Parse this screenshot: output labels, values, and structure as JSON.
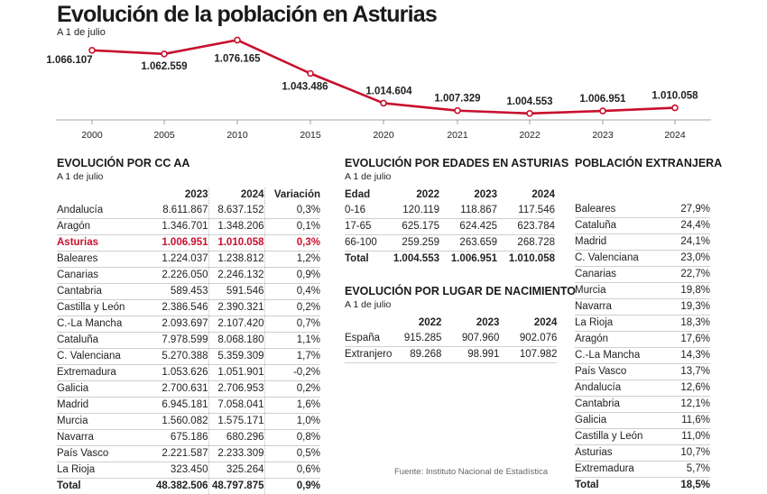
{
  "header": {
    "title": "Evolución de la población en Asturias",
    "subtitle": "A 1 de julio"
  },
  "chart_data": {
    "type": "line",
    "x": [
      "2000",
      "2005",
      "2010",
      "2015",
      "2020",
      "2021",
      "2022",
      "2023",
      "2024"
    ],
    "values": [
      1066107,
      1062559,
      1076165,
      1043486,
      1014604,
      1007329,
      1004553,
      1006951,
      1010058
    ],
    "labels": [
      "1.066.107",
      "1.062.559",
      "1.076.165",
      "1.043.486",
      "1.014.604",
      "1.007.329",
      "1.004.553",
      "1.006.951",
      "1.010.058"
    ],
    "color": "#c8102e",
    "title": "Evolución de la población en Asturias",
    "subtitle": "A 1 de julio"
  },
  "ccaa": {
    "title": "EVOLUCIÓN POR CC AA",
    "subtitle": "A 1 de julio",
    "headers": [
      "",
      "2023",
      "2024",
      "Variación"
    ],
    "rows": [
      {
        "name": "Andalucía",
        "y2023": "8.611.867",
        "y2024": "8.637.152",
        "var": "0,3%"
      },
      {
        "name": "Aragón",
        "y2023": "1.346.701",
        "y2024": "1.348.206",
        "var": "0,1%"
      },
      {
        "name": "Asturias",
        "y2023": "1.006.951",
        "y2024": "1.010.058",
        "var": "0,3%",
        "highlight": true
      },
      {
        "name": "Baleares",
        "y2023": "1.224.037",
        "y2024": "1.238.812",
        "var": "1,2%"
      },
      {
        "name": "Canarias",
        "y2023": "2.226.050",
        "y2024": "2.246.132",
        "var": "0,9%"
      },
      {
        "name": "Cantabria",
        "y2023": "589.453",
        "y2024": "591.546",
        "var": "0,4%"
      },
      {
        "name": "Castilla y León",
        "y2023": "2.386.546",
        "y2024": "2.390.321",
        "var": "0,2%"
      },
      {
        "name": "C.-La Mancha",
        "y2023": "2.093.697",
        "y2024": "2.107.420",
        "var": "0,7%"
      },
      {
        "name": "Cataluña",
        "y2023": "7.978.599",
        "y2024": "8.068.180",
        "var": "1,1%"
      },
      {
        "name": "C. Valenciana",
        "y2023": "5.270.388",
        "y2024": "5.359.309",
        "var": "1,7%"
      },
      {
        "name": "Extremadura",
        "y2023": "1.053.626",
        "y2024": "1.051.901",
        "var": "-0,2%"
      },
      {
        "name": "Galicia",
        "y2023": "2.700.631",
        "y2024": "2.706.953",
        "var": "0,2%"
      },
      {
        "name": "Madrid",
        "y2023": "6.945.181",
        "y2024": "7.058.041",
        "var": "1,6%"
      },
      {
        "name": "Murcia",
        "y2023": "1.560.082",
        "y2024": "1.575.171",
        "var": "1,0%"
      },
      {
        "name": "Navarra",
        "y2023": "675.186",
        "y2024": "680.296",
        "var": "0,8%"
      },
      {
        "name": "País Vasco",
        "y2023": "2.221.587",
        "y2024": "2.233.309",
        "var": "0,5%"
      },
      {
        "name": "La Rioja",
        "y2023": "323.450",
        "y2024": "325.264",
        "var": "0,6%"
      }
    ],
    "total": {
      "name": "Total",
      "y2023": "48.382.506",
      "y2024": "48.797.875",
      "var": "0,9%"
    },
    "highlight_color": "#c8102e"
  },
  "edades": {
    "title": "EVOLUCIÓN POR EDADES EN ASTURIAS",
    "subtitle": "A 1 de julio",
    "headers": [
      "Edad",
      "2022",
      "2023",
      "2024"
    ],
    "rows": [
      {
        "name": "0-16",
        "y2022": "120.119",
        "y2023": "118.867",
        "y2024": "117.546"
      },
      {
        "name": "17-65",
        "y2022": "625.175",
        "y2023": "624.425",
        "y2024": "623.784"
      },
      {
        "name": "66-100",
        "y2022": "259.259",
        "y2023": "263.659",
        "y2024": "268.728"
      }
    ],
    "total": {
      "name": "Total",
      "y2022": "1.004.553",
      "y2023": "1.006.951",
      "y2024": "1.010.058"
    }
  },
  "nacimiento": {
    "title": "EVOLUCIÓN POR LUGAR DE NACIMIENTO",
    "subtitle": "A 1 de julio",
    "headers": [
      "",
      "2022",
      "2023",
      "2024"
    ],
    "rows": [
      {
        "name": "España",
        "y2022": "915.285",
        "y2023": "907.960",
        "y2024": "902.076"
      },
      {
        "name": "Extranjero",
        "y2022": "89.268",
        "y2023": "98.991",
        "y2024": "107.982"
      }
    ]
  },
  "extranjera": {
    "title": "POBLACIÓN EXTRANJERA",
    "rows": [
      {
        "name": "Baleares",
        "pct": "27,9%"
      },
      {
        "name": "Cataluña",
        "pct": "24,4%"
      },
      {
        "name": "Madrid",
        "pct": "24,1%"
      },
      {
        "name": "C. Valenciana",
        "pct": "23,0%"
      },
      {
        "name": "Canarias",
        "pct": "22,7%"
      },
      {
        "name": "Murcia",
        "pct": "19,8%"
      },
      {
        "name": "Navarra",
        "pct": "19,3%"
      },
      {
        "name": "La Rioja",
        "pct": "18,3%"
      },
      {
        "name": "Aragón",
        "pct": "17,6%"
      },
      {
        "name": "C.-La Mancha",
        "pct": "14,3%"
      },
      {
        "name": "País Vasco",
        "pct": "13,7%"
      },
      {
        "name": "Andalucía",
        "pct": "12,6%"
      },
      {
        "name": "Cantabria",
        "pct": "12,1%"
      },
      {
        "name": "Galicia",
        "pct": "11,6%"
      },
      {
        "name": "Castilla y León",
        "pct": "11,0%"
      },
      {
        "name": "Asturias",
        "pct": "10,7%"
      },
      {
        "name": "Extremadura",
        "pct": "5,7%"
      }
    ],
    "total": {
      "name": "Total",
      "pct": "18,5%"
    }
  },
  "source": "Fuente: Instituto Nacional de Estadística"
}
